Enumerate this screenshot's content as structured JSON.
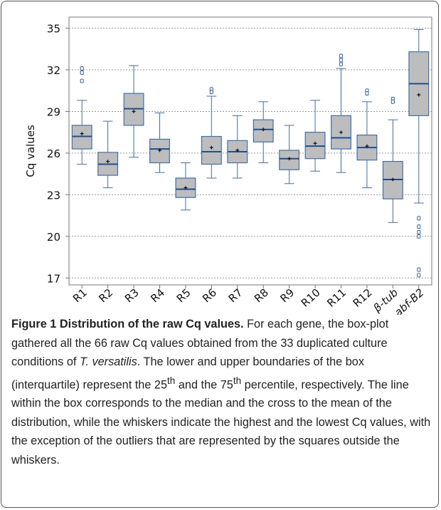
{
  "chart_data": {
    "type": "box",
    "y_label": "Cq values",
    "categories": [
      "R1",
      "R2",
      "R3",
      "R4",
      "R5",
      "R6",
      "R7",
      "R8",
      "R9",
      "R10",
      "R11",
      "R12",
      "β-tub",
      "abf-B2"
    ],
    "italic_categories": [
      "β-tub",
      "abf-B2"
    ],
    "box_color": "#bdbdbd",
    "line_color": "#3e6fb0",
    "median_color": "#1f4f8f",
    "boxes": [
      {
        "min": 25.2,
        "q1": 26.3,
        "median": 27.2,
        "q3": 28.0,
        "max": 29.8,
        "mean": 27.4,
        "outliers": [
          32.1,
          31.8,
          31.2
        ]
      },
      {
        "min": 23.5,
        "q1": 24.4,
        "median": 25.2,
        "q3": 26.05,
        "max": 28.3,
        "mean": 25.4,
        "outliers": []
      },
      {
        "min": 25.7,
        "q1": 28.0,
        "median": 29.2,
        "q3": 30.3,
        "max": 32.3,
        "mean": 29.0,
        "outliers": []
      },
      {
        "min": 24.6,
        "q1": 25.3,
        "median": 26.3,
        "q3": 27.0,
        "max": 28.9,
        "mean": 26.2,
        "outliers": []
      },
      {
        "min": 21.9,
        "q1": 22.8,
        "median": 23.4,
        "q3": 24.2,
        "max": 25.3,
        "mean": 23.5,
        "outliers": []
      },
      {
        "min": 24.2,
        "q1": 25.2,
        "median": 26.1,
        "q3": 27.2,
        "max": 30.1,
        "mean": 26.4,
        "outliers": [
          30.6,
          30.4
        ]
      },
      {
        "min": 24.2,
        "q1": 25.3,
        "median": 26.1,
        "q3": 26.9,
        "max": 28.7,
        "mean": 26.2,
        "outliers": []
      },
      {
        "min": 25.3,
        "q1": 26.8,
        "median": 27.7,
        "q3": 28.4,
        "max": 29.7,
        "mean": 27.7,
        "outliers": []
      },
      {
        "min": 23.8,
        "q1": 24.8,
        "median": 25.6,
        "q3": 26.2,
        "max": 28.0,
        "mean": 25.6,
        "outliers": []
      },
      {
        "min": 24.7,
        "q1": 25.6,
        "median": 26.5,
        "q3": 27.5,
        "max": 29.8,
        "mean": 26.7,
        "outliers": []
      },
      {
        "min": 24.6,
        "q1": 26.3,
        "median": 27.1,
        "q3": 28.7,
        "max": 32.1,
        "mean": 27.5,
        "outliers": [
          33.0,
          32.7,
          32.4
        ]
      },
      {
        "min": 23.5,
        "q1": 25.5,
        "median": 26.4,
        "q3": 27.3,
        "max": 29.7,
        "mean": 26.5,
        "outliers": [
          30.5,
          30.3
        ]
      },
      {
        "min": 21.0,
        "q1": 22.7,
        "median": 24.1,
        "q3": 25.4,
        "max": 28.4,
        "mean": 24.1,
        "outliers": [
          29.9,
          29.7
        ]
      },
      {
        "min": 22.4,
        "q1": 28.7,
        "median": 31.0,
        "q3": 33.3,
        "max": 34.9,
        "mean": 30.2,
        "outliers": [
          21.3,
          20.7,
          20.3,
          20.0,
          17.6,
          17.2
        ]
      }
    ],
    "ylim": [
      16.5,
      35.8
    ],
    "yticks": [
      17,
      20,
      23,
      26,
      29,
      32,
      35
    ],
    "grid": true
  },
  "caption": {
    "title": "Figure 1 Distribution of the raw Cq values.",
    "text1": " For each gene, the box-plot gathered all the 66 raw Cq values obtained from the 33 duplicated culture conditions of ",
    "species": "T. versatilis",
    "text2": ". The lower and upper boundaries of the box (interquartile) represent the 25",
    "sup1": "th",
    "text3": " and the 75",
    "sup2": "th",
    "text4": " percentile, respectively. The line within the box corresponds to the median and the cross to the mean of the distribution, while the whiskers indicate the highest and the lowest Cq values, with the exception of the outliers that are represented by the squares outside the whiskers."
  }
}
